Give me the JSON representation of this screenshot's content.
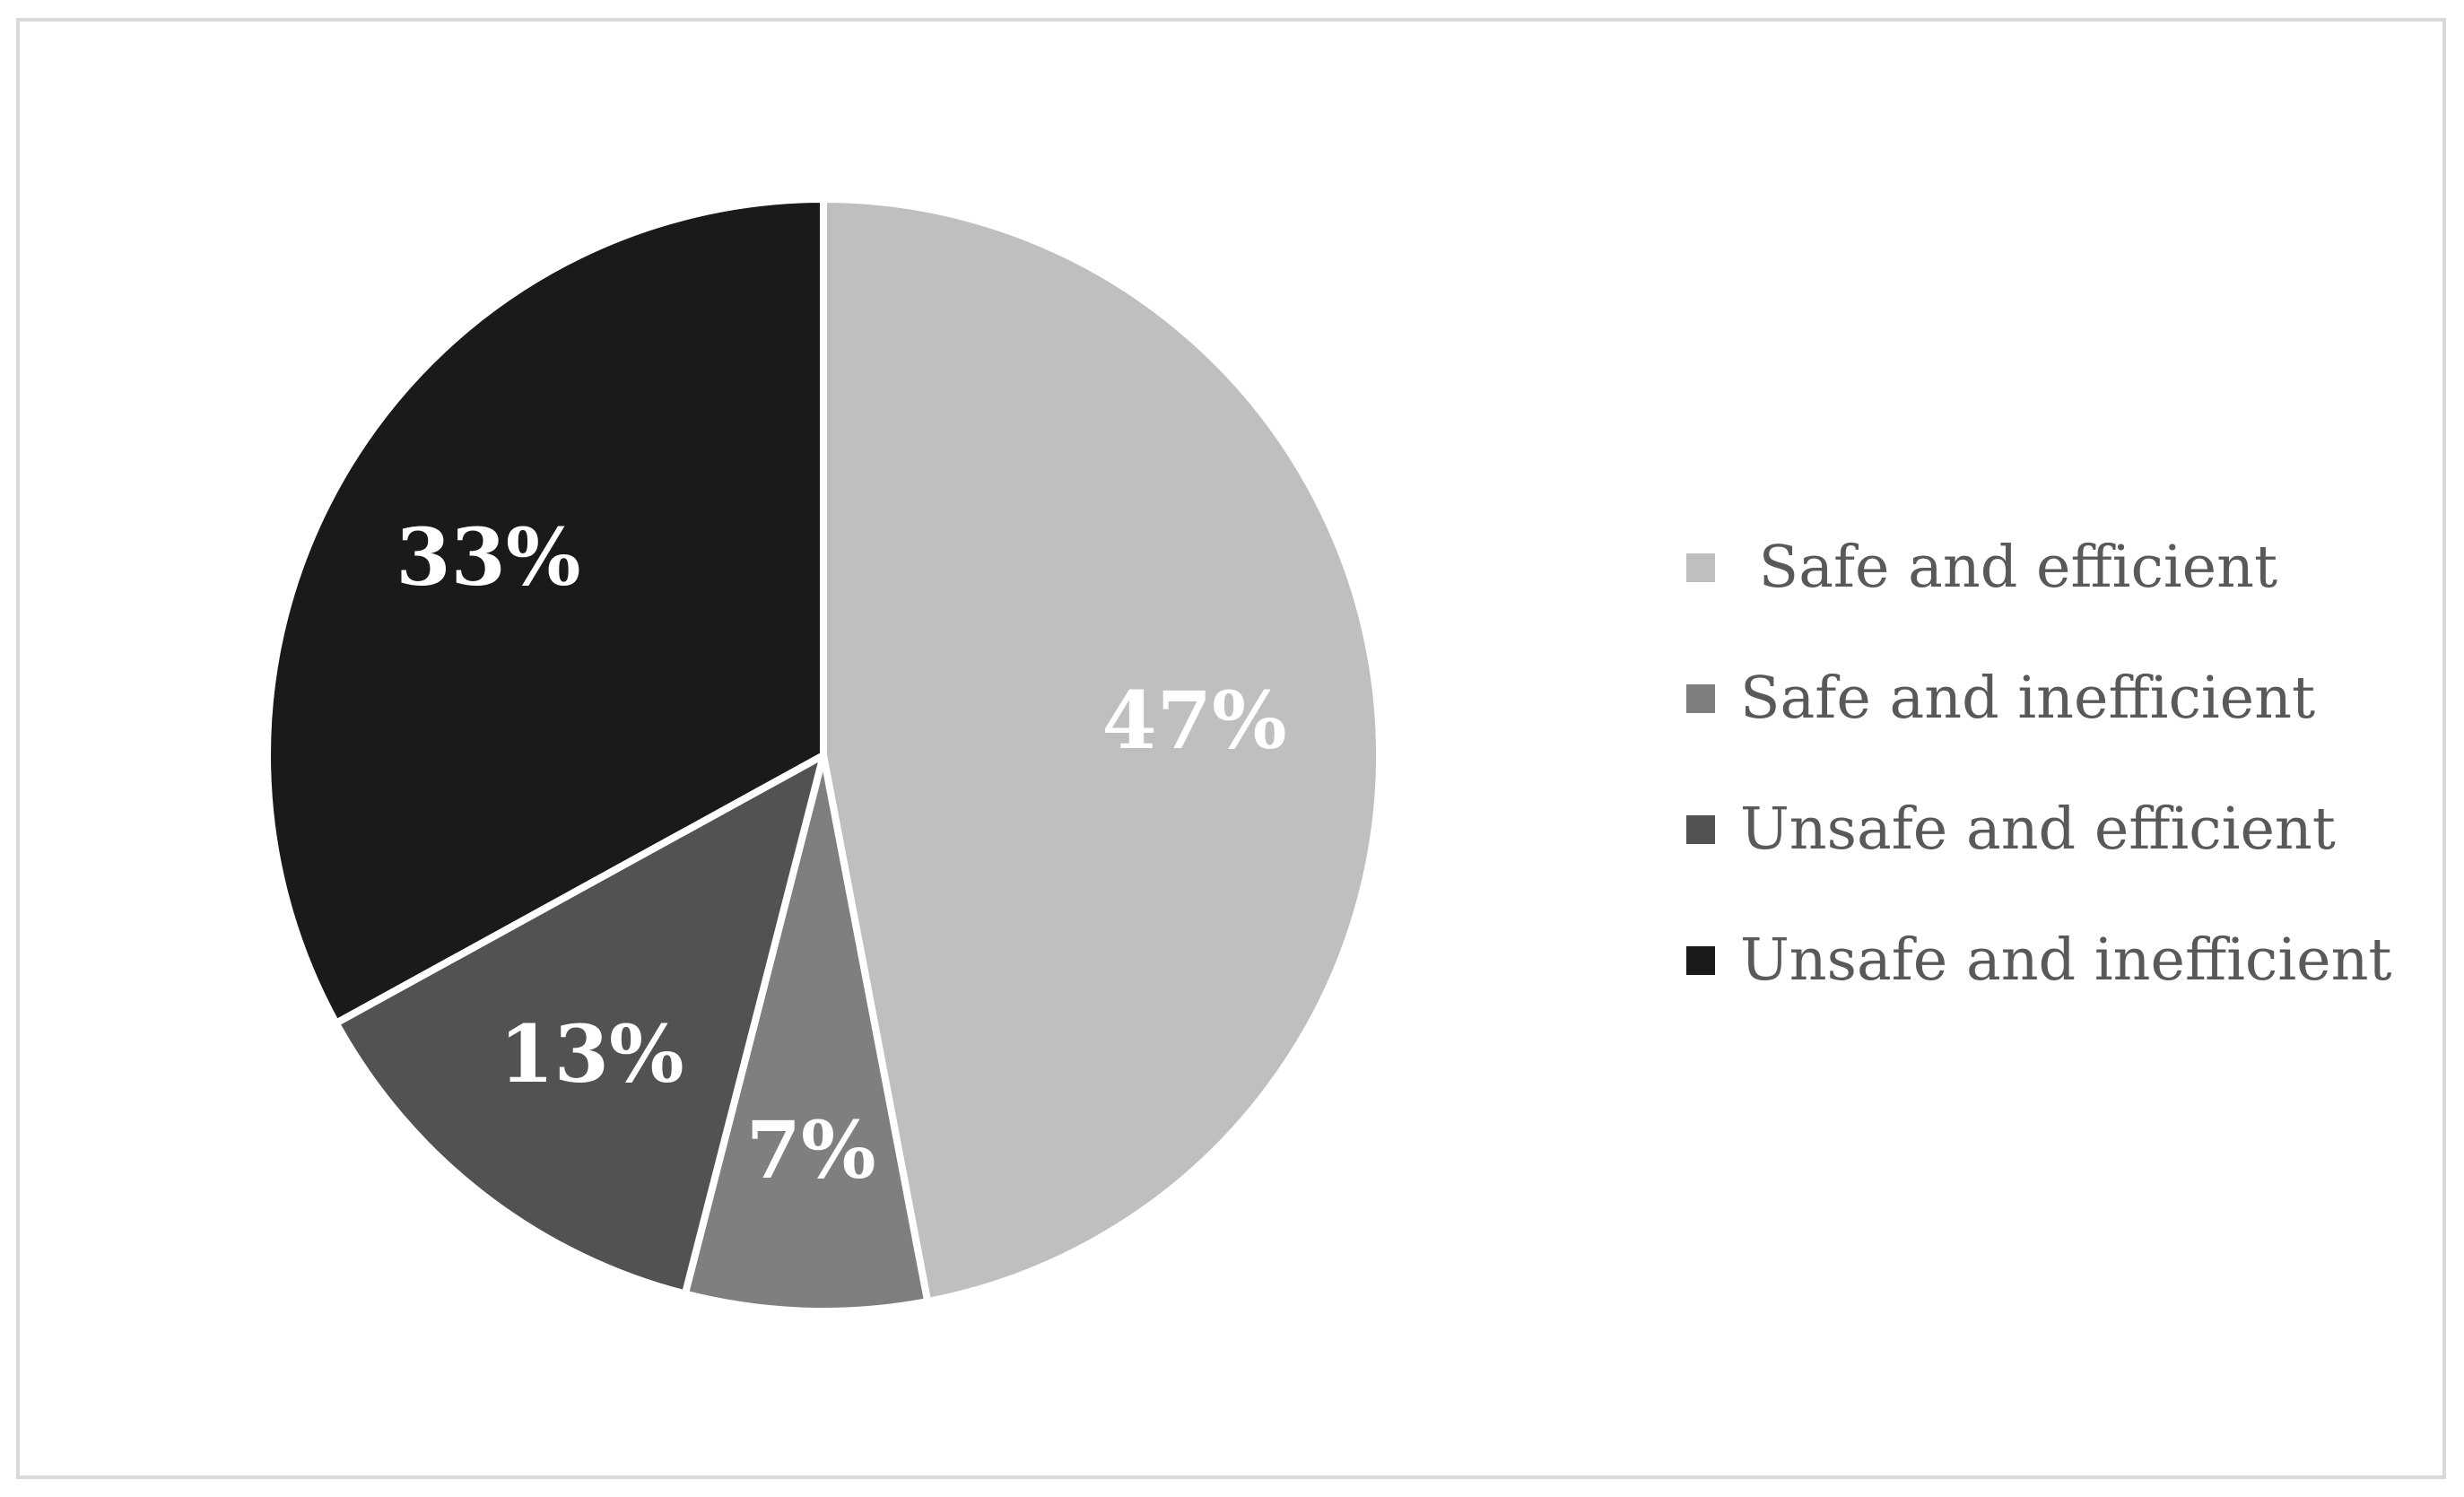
{
  "chart_data": {
    "type": "pie",
    "title": "",
    "categories": [
      "Safe and efficient",
      "Safe and inefficient",
      "Unsafe and efficient",
      "Unsafe and inefficient"
    ],
    "values": [
      47,
      7,
      13,
      33
    ],
    "labels": [
      "47%",
      "7%",
      "13%",
      "33%"
    ],
    "legend_labels": [
      " Safe and efficient",
      "Safe and inefficient",
      "Unsafe and efficient",
      "Unsafe and inefficient"
    ],
    "colors": [
      "#bfbfbf",
      "#7f7f7f",
      "#525252",
      "#1a1a1a"
    ],
    "start_angle_deg": 0,
    "direction": "clockwise",
    "legend_position": "right"
  }
}
